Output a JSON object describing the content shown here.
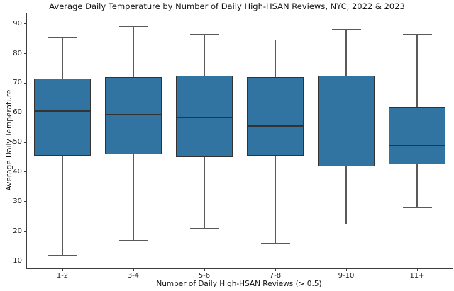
{
  "chart_data": {
    "type": "box",
    "title": "Average Daily Temperature by Number of Daily High-HSAN Reviews, NYC, 2022 & 2023",
    "xlabel": "Number of Daily High-HSAN Reviews (> 0.5)",
    "ylabel": "Average Daily Temperature",
    "categories": [
      "1-2",
      "3-4",
      "5-6",
      "7-8",
      "9-10",
      "11+"
    ],
    "series": [
      {
        "category": "1-2",
        "whisker_low": 12,
        "q1": 45.5,
        "median": 60.5,
        "q3": 71.5,
        "whisker_high": 85.5
      },
      {
        "category": "3-4",
        "whisker_low": 17,
        "q1": 46,
        "median": 59.5,
        "q3": 72,
        "whisker_high": 89
      },
      {
        "category": "5-6",
        "whisker_low": 21,
        "q1": 45,
        "median": 58.5,
        "q3": 72.5,
        "whisker_high": 86.5
      },
      {
        "category": "7-8",
        "whisker_low": 16,
        "q1": 45.5,
        "median": 55.5,
        "q3": 72,
        "whisker_high": 84.5
      },
      {
        "category": "9-10",
        "whisker_low": 22.5,
        "q1": 42,
        "median": 52.5,
        "q3": 72.5,
        "whisker_high": 88
      },
      {
        "category": "11+",
        "whisker_low": 28,
        "q1": 42.5,
        "median": 49,
        "q3": 62,
        "whisker_high": 86.5
      }
    ],
    "y_ticks": [
      10,
      20,
      30,
      40,
      50,
      60,
      70,
      80,
      90
    ],
    "ylim": [
      7.5,
      93.5
    ],
    "grid": false,
    "legend": "none",
    "colors": {
      "box_fill": "#3274a1",
      "box_edge": "#333333",
      "median": "#333333",
      "whisker": "#5a5a5a",
      "spine": "#3c3c3c",
      "background": "#ffffff",
      "text": "#111111"
    }
  }
}
